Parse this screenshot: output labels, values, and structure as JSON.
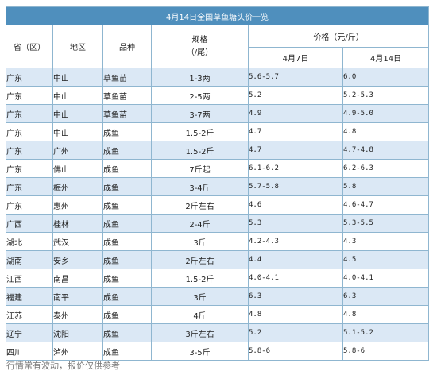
{
  "title": "4月14日全国草鱼塘头价一览",
  "headers": {
    "province": "省（区）",
    "area": "地区",
    "kind": "品种",
    "spec_line1": "规格",
    "spec_line2": "（/尾）",
    "price": "价格（元/斤）",
    "date1": "4月7日",
    "date2": "4月14日"
  },
  "rows": [
    {
      "province": "广东",
      "area": "中山",
      "kind": "草鱼苗",
      "spec": "1-3两",
      "p1": "5.6-5.7",
      "p2": "6.0"
    },
    {
      "province": "广东",
      "area": "中山",
      "kind": "草鱼苗",
      "spec": "2-5两",
      "p1": "5.2",
      "p2": "5.2-5.3"
    },
    {
      "province": "广东",
      "area": "中山",
      "kind": "草鱼苗",
      "spec": "3-7两",
      "p1": "4.9",
      "p2": "4.9-5.0"
    },
    {
      "province": "广东",
      "area": "中山",
      "kind": "成鱼",
      "spec": "1.5-2斤",
      "p1": "4.7",
      "p2": "4.8"
    },
    {
      "province": "广东",
      "area": "广州",
      "kind": "成鱼",
      "spec": "1.5-2斤",
      "p1": "4.7",
      "p2": "4.7-4.8"
    },
    {
      "province": "广东",
      "area": "佛山",
      "kind": "成鱼",
      "spec": "7斤起",
      "p1": "6.1-6.2",
      "p2": "6.2-6.3"
    },
    {
      "province": "广东",
      "area": "梅州",
      "kind": "成鱼",
      "spec": "3-4斤",
      "p1": "5.7-5.8",
      "p2": "5.8"
    },
    {
      "province": "广东",
      "area": "惠州",
      "kind": "成鱼",
      "spec": "2斤左右",
      "p1": "4.6",
      "p2": "4.6-4.7"
    },
    {
      "province": "广西",
      "area": "桂林",
      "kind": "成鱼",
      "spec": "2-4斤",
      "p1": "5.3",
      "p2": "5.3-5.5"
    },
    {
      "province": "湖北",
      "area": "武汉",
      "kind": "成鱼",
      "spec": "3斤",
      "p1": "4.2-4.3",
      "p2": "4.3"
    },
    {
      "province": "湖南",
      "area": "安乡",
      "kind": "成鱼",
      "spec": "2斤左右",
      "p1": "4.4",
      "p2": "4.5"
    },
    {
      "province": "江西",
      "area": "南昌",
      "kind": "成鱼",
      "spec": "1.5-2斤",
      "p1": "4.0-4.1",
      "p2": "4.0-4.1"
    },
    {
      "province": "福建",
      "area": "南平",
      "kind": "成鱼",
      "spec": "3斤",
      "p1": "6.3",
      "p2": "6.3"
    },
    {
      "province": "江苏",
      "area": "泰州",
      "kind": "成鱼",
      "spec": "4斤",
      "p1": "4.8",
      "p2": "4.8"
    },
    {
      "province": "辽宁",
      "area": "沈阳",
      "kind": "成鱼",
      "spec": "3斤左右",
      "p1": "5.2",
      "p2": "5.1-5.2"
    },
    {
      "province": "四川",
      "area": "泸州",
      "kind": "成鱼",
      "spec": "3-5斤",
      "p1": "5.8-6",
      "p2": "5.8-6"
    }
  ],
  "footnote": "行情常有波动，报价仅供参考"
}
